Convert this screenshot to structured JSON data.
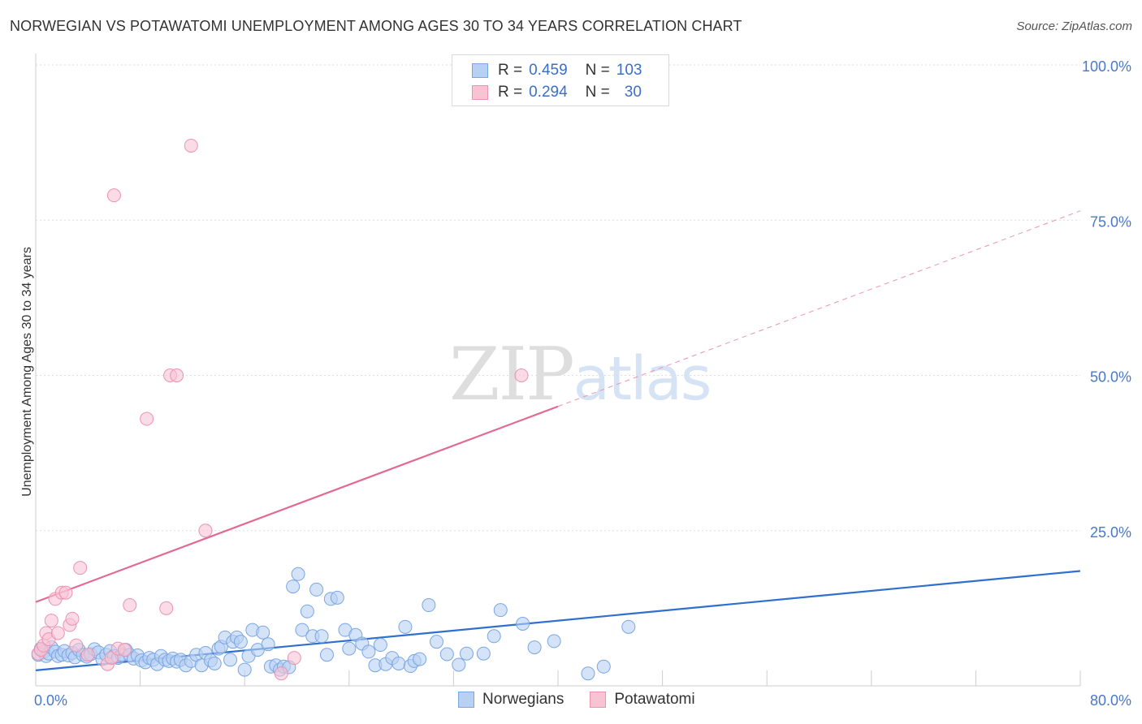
{
  "title": "NORWEGIAN VS POTAWATOMI UNEMPLOYMENT AMONG AGES 30 TO 34 YEARS CORRELATION CHART",
  "source": "Source: ZipAtlas.com",
  "watermark": {
    "zip": "ZIP",
    "atlas": "atlas"
  },
  "legend": {
    "rows": [
      {
        "r_label": "R =",
        "r_value": "0.459",
        "n_label": "N =",
        "n_value": "103"
      },
      {
        "r_label": "R =",
        "r_value": "0.294",
        "n_label": "N =",
        "n_value": "30"
      }
    ]
  },
  "colors": {
    "norwegians_fill": "#b7d0f3",
    "norwegians_stroke": "#7aa6e3",
    "norwegians_line": "#2e6fd0",
    "potawatomi_fill": "#f8c3d3",
    "potawatomi_stroke": "#ec93b0",
    "potawatomi_line": "#e06a93",
    "tick_text": "#4a78c9",
    "grid": "#dddddd"
  },
  "chart_data": {
    "type": "scatter",
    "title": "NORWEGIAN VS POTAWATOMI UNEMPLOYMENT AMONG AGES 30 TO 34 YEARS CORRELATION CHART",
    "xlabel": "",
    "ylabel": "Unemployment Among Ages 30 to 34 years",
    "xlim": [
      0,
      80
    ],
    "ylim": [
      0,
      100
    ],
    "x_ticks": [
      {
        "value": 0,
        "label": "0.0%"
      },
      {
        "value": 80,
        "label": "80.0%"
      }
    ],
    "y_ticks": [
      {
        "value": 25,
        "label": "25.0%"
      },
      {
        "value": 50,
        "label": "50.0%"
      },
      {
        "value": 75,
        "label": "75.0%"
      },
      {
        "value": 100,
        "label": "100.0%"
      }
    ],
    "grid": true,
    "legend_position": "top-center",
    "series": [
      {
        "name": "Norwegians",
        "R": 0.459,
        "N": 103,
        "trend": {
          "x0": 0,
          "y0": 2.5,
          "x1": 80,
          "y1": 18.5,
          "dashed_to": null
        },
        "points": [
          [
            0.2,
            5.0
          ],
          [
            0.4,
            6.0
          ],
          [
            0.6,
            5.5
          ],
          [
            0.8,
            4.8
          ],
          [
            1.0,
            5.2
          ],
          [
            1.2,
            6.2
          ],
          [
            1.5,
            5.5
          ],
          [
            1.7,
            4.8
          ],
          [
            2.0,
            5.0
          ],
          [
            2.2,
            5.6
          ],
          [
            2.5,
            4.9
          ],
          [
            2.8,
            5.3
          ],
          [
            3.0,
            4.6
          ],
          [
            3.3,
            5.8
          ],
          [
            3.6,
            5.0
          ],
          [
            3.9,
            4.7
          ],
          [
            4.2,
            5.1
          ],
          [
            4.5,
            5.9
          ],
          [
            4.8,
            5.4
          ],
          [
            5.1,
            4.3
          ],
          [
            5.4,
            5.0
          ],
          [
            5.7,
            5.6
          ],
          [
            6.0,
            4.8
          ],
          [
            6.3,
            4.5
          ],
          [
            6.6,
            5.0
          ],
          [
            6.9,
            5.8
          ],
          [
            7.2,
            5.0
          ],
          [
            7.5,
            4.4
          ],
          [
            7.8,
            4.9
          ],
          [
            8.1,
            4.1
          ],
          [
            8.4,
            3.8
          ],
          [
            8.7,
            4.5
          ],
          [
            9.0,
            4.2
          ],
          [
            9.3,
            3.5
          ],
          [
            9.6,
            4.8
          ],
          [
            9.9,
            4.2
          ],
          [
            10.2,
            4.0
          ],
          [
            10.5,
            4.4
          ],
          [
            10.8,
            3.9
          ],
          [
            11.1,
            4.2
          ],
          [
            11.5,
            3.3
          ],
          [
            11.9,
            4.0
          ],
          [
            12.3,
            5.0
          ],
          [
            12.7,
            3.3
          ],
          [
            13.0,
            5.3
          ],
          [
            13.4,
            4.1
          ],
          [
            13.7,
            3.6
          ],
          [
            14.0,
            6.0
          ],
          [
            14.2,
            6.3
          ],
          [
            14.5,
            7.8
          ],
          [
            14.9,
            4.2
          ],
          [
            15.1,
            7.1
          ],
          [
            15.4,
            7.8
          ],
          [
            15.7,
            7.1
          ],
          [
            16.0,
            2.6
          ],
          [
            16.3,
            4.8
          ],
          [
            16.6,
            9.0
          ],
          [
            17.0,
            5.8
          ],
          [
            17.4,
            8.6
          ],
          [
            17.8,
            6.7
          ],
          [
            18.0,
            3.1
          ],
          [
            18.4,
            3.3
          ],
          [
            18.7,
            2.6
          ],
          [
            19.0,
            3.1
          ],
          [
            19.4,
            3.0
          ],
          [
            19.7,
            16.0
          ],
          [
            20.1,
            18.0
          ],
          [
            20.4,
            9.0
          ],
          [
            20.8,
            12.0
          ],
          [
            21.2,
            8.0
          ],
          [
            21.5,
            15.5
          ],
          [
            21.9,
            8.0
          ],
          [
            22.3,
            5.0
          ],
          [
            22.6,
            14.0
          ],
          [
            23.1,
            14.2
          ],
          [
            23.7,
            9.0
          ],
          [
            24.0,
            6.0
          ],
          [
            24.5,
            8.2
          ],
          [
            25.0,
            6.8
          ],
          [
            25.5,
            5.5
          ],
          [
            26.0,
            3.3
          ],
          [
            26.4,
            6.6
          ],
          [
            26.8,
            3.5
          ],
          [
            27.3,
            4.5
          ],
          [
            27.8,
            3.6
          ],
          [
            28.3,
            9.5
          ],
          [
            28.7,
            3.2
          ],
          [
            29.0,
            4.0
          ],
          [
            29.4,
            4.3
          ],
          [
            30.1,
            13.0
          ],
          [
            30.7,
            7.1
          ],
          [
            31.5,
            5.1
          ],
          [
            32.4,
            3.4
          ],
          [
            33.0,
            5.2
          ],
          [
            34.3,
            5.2
          ],
          [
            35.1,
            8.0
          ],
          [
            35.6,
            12.2
          ],
          [
            37.3,
            10.0
          ],
          [
            38.2,
            6.2
          ],
          [
            39.7,
            7.2
          ],
          [
            42.3,
            2.0
          ],
          [
            43.5,
            3.1
          ],
          [
            45.4,
            9.5
          ]
        ]
      },
      {
        "name": "Potawatomi",
        "R": 0.294,
        "N": 30,
        "trend": {
          "x0": 0,
          "y0": 13.5,
          "x1": 40,
          "y1": 45.0,
          "dashed_to": {
            "x": 80,
            "y": 76.5
          }
        },
        "points": [
          [
            0.2,
            5.2
          ],
          [
            0.4,
            5.8
          ],
          [
            0.6,
            6.5
          ],
          [
            0.8,
            8.5
          ],
          [
            1.0,
            7.5
          ],
          [
            1.2,
            10.5
          ],
          [
            1.5,
            14.0
          ],
          [
            1.7,
            8.5
          ],
          [
            2.0,
            15.0
          ],
          [
            2.3,
            15.0
          ],
          [
            2.6,
            9.8
          ],
          [
            2.8,
            10.8
          ],
          [
            3.1,
            6.5
          ],
          [
            3.4,
            19.0
          ],
          [
            4.0,
            5.0
          ],
          [
            5.5,
            3.5
          ],
          [
            5.8,
            4.5
          ],
          [
            6.0,
            79.0
          ],
          [
            6.3,
            6.0
          ],
          [
            6.8,
            5.8
          ],
          [
            7.2,
            13.0
          ],
          [
            8.5,
            43.0
          ],
          [
            10.0,
            12.5
          ],
          [
            10.3,
            50.0
          ],
          [
            10.8,
            50.0
          ],
          [
            11.9,
            87.0
          ],
          [
            13.0,
            25.0
          ],
          [
            18.8,
            2.0
          ],
          [
            19.8,
            4.5
          ],
          [
            37.2,
            50.0
          ]
        ]
      }
    ]
  }
}
